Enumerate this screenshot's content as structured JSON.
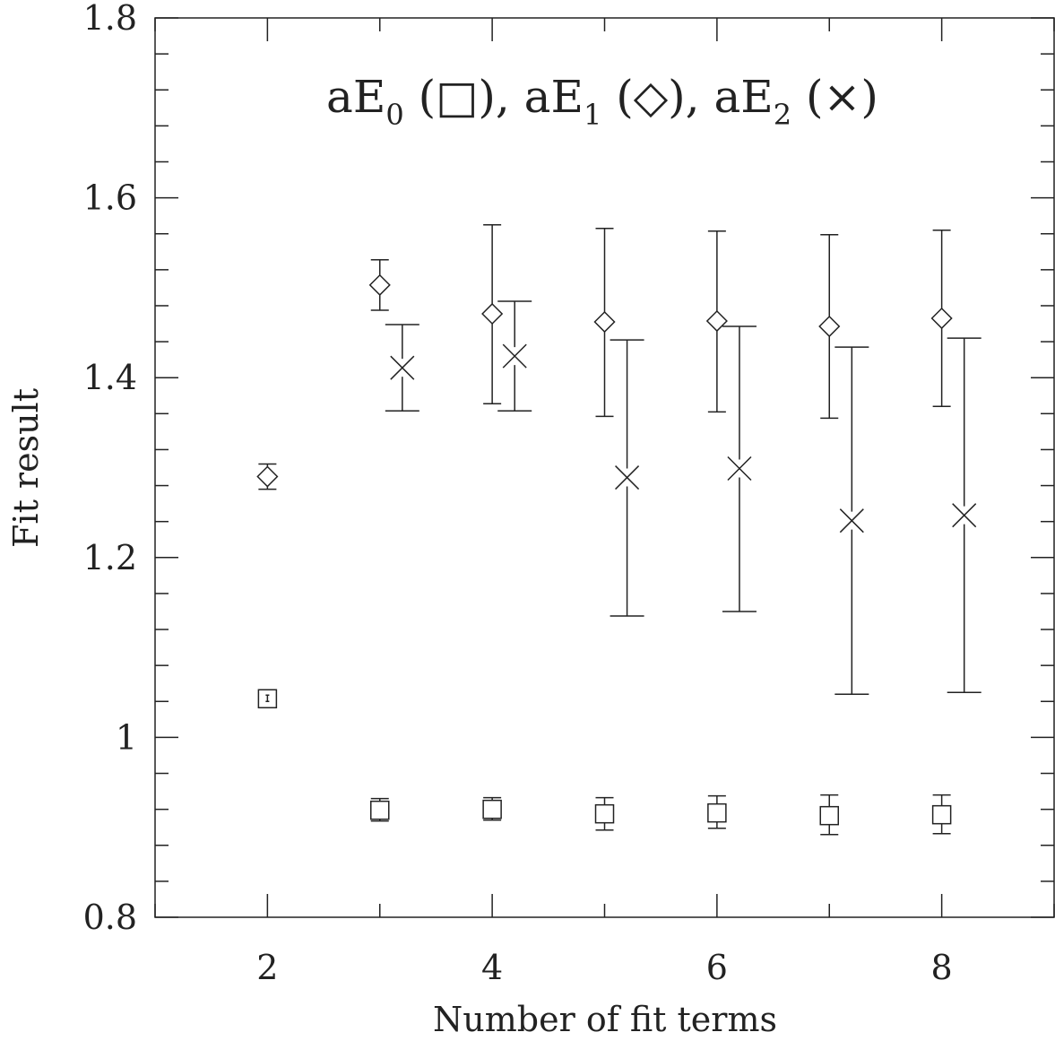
{
  "chart_data": {
    "type": "scatter",
    "title": {
      "parts": [
        {
          "text": "aE"
        },
        {
          "sub": "0"
        },
        {
          "text": " (□), aE"
        },
        {
          "sub": "1"
        },
        {
          "text": " (◇), aE"
        },
        {
          "sub": "2"
        },
        {
          "text": " (×)"
        }
      ]
    },
    "xlabel": "Number of fit terms",
    "ylabel": "Fit result",
    "xlim": [
      1,
      9
    ],
    "ylim": [
      0.8,
      1.8
    ],
    "x_ticks": [
      2,
      4,
      6,
      8
    ],
    "y_ticks": [
      "0.8",
      "1",
      "1.2",
      "1.4",
      "1.6",
      "1.8"
    ],
    "grid": false,
    "series": [
      {
        "name": "aE0",
        "marker": "square",
        "points": [
          {
            "x": 2,
            "y": 1.043,
            "lo": 1.04,
            "hi": 1.047
          },
          {
            "x": 3,
            "y": 0.919,
            "lo": 0.907,
            "hi": 0.932
          },
          {
            "x": 4,
            "y": 0.92,
            "lo": 0.908,
            "hi": 0.933
          },
          {
            "x": 5,
            "y": 0.915,
            "lo": 0.897,
            "hi": 0.933
          },
          {
            "x": 6,
            "y": 0.916,
            "lo": 0.899,
            "hi": 0.935
          },
          {
            "x": 7,
            "y": 0.913,
            "lo": 0.892,
            "hi": 0.936
          },
          {
            "x": 8,
            "y": 0.914,
            "lo": 0.893,
            "hi": 0.936
          }
        ]
      },
      {
        "name": "aE1",
        "marker": "diamond",
        "points": [
          {
            "x": 2,
            "y": 1.29,
            "lo": 1.276,
            "hi": 1.304
          },
          {
            "x": 3,
            "y": 1.503,
            "lo": 1.475,
            "hi": 1.531
          },
          {
            "x": 4,
            "y": 1.471,
            "lo": 1.371,
            "hi": 1.57
          },
          {
            "x": 5,
            "y": 1.462,
            "lo": 1.357,
            "hi": 1.566
          },
          {
            "x": 6,
            "y": 1.463,
            "lo": 1.362,
            "hi": 1.563
          },
          {
            "x": 7,
            "y": 1.457,
            "lo": 1.355,
            "hi": 1.559
          },
          {
            "x": 8,
            "y": 1.466,
            "lo": 1.368,
            "hi": 1.564
          }
        ]
      },
      {
        "name": "aE2",
        "marker": "cross",
        "points": [
          {
            "x": 3.2,
            "y": 1.411,
            "lo": 1.363,
            "hi": 1.459
          },
          {
            "x": 4.2,
            "y": 1.424,
            "lo": 1.363,
            "hi": 1.485
          },
          {
            "x": 5.2,
            "y": 1.289,
            "lo": 1.135,
            "hi": 1.442
          },
          {
            "x": 6.2,
            "y": 1.299,
            "lo": 1.14,
            "hi": 1.457
          },
          {
            "x": 7.2,
            "y": 1.241,
            "lo": 1.048,
            "hi": 1.434
          },
          {
            "x": 8.2,
            "y": 1.247,
            "lo": 1.05,
            "hi": 1.444
          }
        ]
      }
    ]
  }
}
